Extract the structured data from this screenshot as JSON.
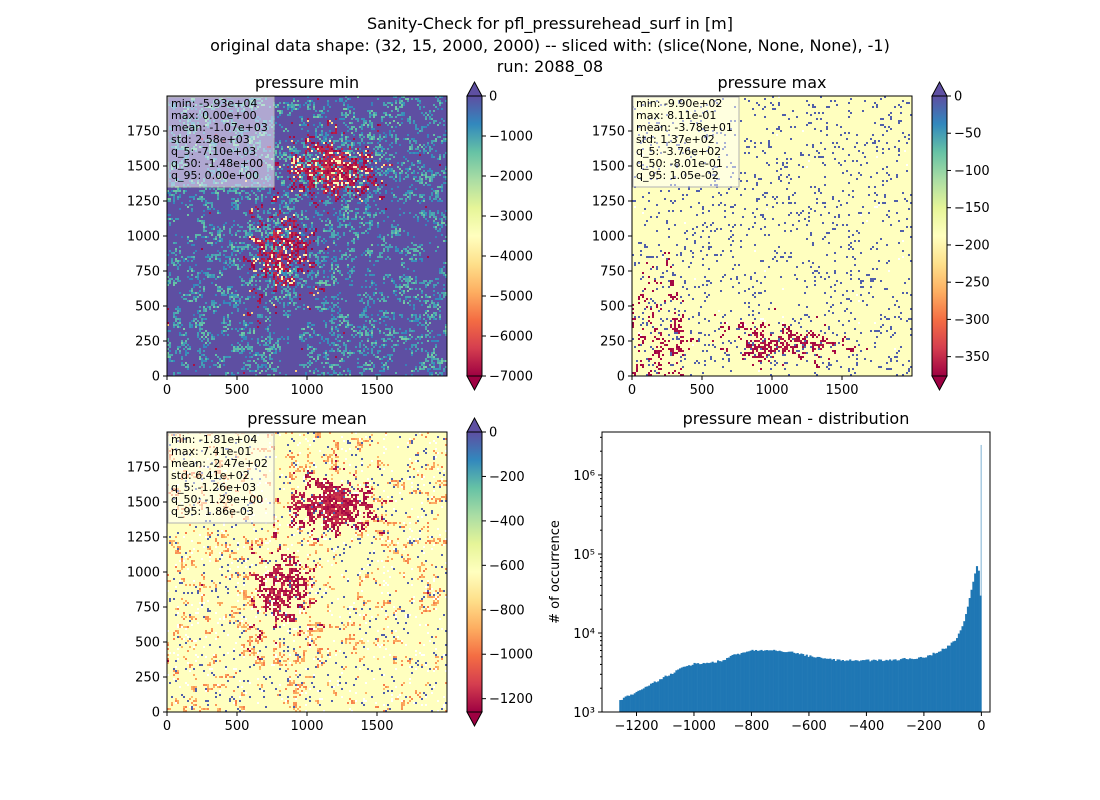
{
  "figure": {
    "title_lines": [
      "Sanity-Check for pfl_pressurehead_surf in [m]",
      "original data shape: (32, 15, 2000, 2000) -- sliced with: (slice(None, None, None), -1)",
      "run: 2088_08"
    ]
  },
  "colors": {
    "bg": "#ffffff",
    "hist_bar": "#1f77b4",
    "spectral_lo": "#9e0142",
    "spectral_hi": "#5e4fa2",
    "stats_box_bg": "#ffffff"
  },
  "chart_data": [
    {
      "type": "heatmap",
      "title": "pressure min",
      "colormap": "Spectral",
      "xlim": [
        0,
        2000
      ],
      "ylim": [
        0,
        2000
      ],
      "xticks": [
        "0",
        "500",
        "1000",
        "1500"
      ],
      "yticks": [
        "0",
        "250",
        "500",
        "750",
        "1000",
        "1250",
        "1500",
        "1750"
      ],
      "colorbar": {
        "min": -7000,
        "max": 0,
        "ticks": [
          "0",
          "−1000",
          "−2000",
          "−3000",
          "−4000",
          "−5000",
          "−6000",
          "−7000"
        ],
        "extend_top": true,
        "extend_bottom": true
      },
      "stats": [
        "min: -5.93e+04",
        "max: 0.00e+00",
        "mean: -1.07e+03",
        "std: 2.58e+03",
        "q_5: -7.10e+03",
        "q_50: -1.48e+00",
        "q_95: 0.00e+00"
      ],
      "dominant": "blue"
    },
    {
      "type": "heatmap",
      "title": "pressure max",
      "colormap": "Spectral",
      "xlim": [
        0,
        2000
      ],
      "ylim": [
        0,
        2000
      ],
      "xticks": [
        "0",
        "500",
        "1000",
        "1500"
      ],
      "yticks": [
        "0",
        "250",
        "500",
        "750",
        "1000",
        "1250",
        "1500",
        "1750"
      ],
      "colorbar": {
        "min": -376,
        "max": 0,
        "ticks": [
          "0",
          "−50",
          "−100",
          "−150",
          "−200",
          "−250",
          "−300",
          "−350"
        ],
        "extend_top": true,
        "extend_bottom": true
      },
      "stats": [
        "min: -9.90e+02",
        "max: 8.11e-01",
        "mean: -3.78e+01",
        "std: 1.37e+02",
        "q_5: -3.76e+02",
        "q_50: -8.01e-01",
        "q_95: 1.05e-02"
      ],
      "dominant": "yellow"
    },
    {
      "type": "heatmap",
      "title": "pressure mean",
      "colormap": "Spectral",
      "xlim": [
        0,
        2000
      ],
      "ylim": [
        0,
        2000
      ],
      "xticks": [
        "0",
        "500",
        "1000",
        "1500"
      ],
      "yticks": [
        "0",
        "250",
        "500",
        "750",
        "1000",
        "1250",
        "1500",
        "1750"
      ],
      "colorbar": {
        "min": -1260,
        "max": 0,
        "ticks": [
          "0",
          "−200",
          "−400",
          "−600",
          "−800",
          "−1000",
          "−1200"
        ],
        "extend_top": true,
        "extend_bottom": true
      },
      "stats": [
        "min: -1.81e+04",
        "max: 7.41e-01",
        "mean: -2.47e+02",
        "std: 6.41e+02",
        "q_5: -1.26e+03",
        "q_50: -1.29e+00",
        "q_95: 1.86e-03"
      ],
      "dominant": "yellow"
    },
    {
      "type": "bar",
      "title": "pressure mean - distribution",
      "ylabel": "# of occurrence",
      "xlabel": "",
      "xlim": [
        -1320,
        30
      ],
      "ylim": [
        1000,
        3500000
      ],
      "yscale": "log",
      "xticks": [
        "−1200",
        "−1000",
        "−800",
        "−600",
        "−400",
        "−200",
        "0"
      ],
      "yticks": [
        "10³",
        "10⁴",
        "10⁵",
        "10⁶"
      ],
      "profile": [
        [
          -1260,
          1400
        ],
        [
          -1200,
          1800
        ],
        [
          -1100,
          2800
        ],
        [
          -1040,
          3600
        ],
        [
          -1000,
          4100
        ],
        [
          -940,
          4200
        ],
        [
          -900,
          4500
        ],
        [
          -860,
          5300
        ],
        [
          -800,
          6000
        ],
        [
          -740,
          6100
        ],
        [
          -700,
          5900
        ],
        [
          -640,
          5600
        ],
        [
          -600,
          5100
        ],
        [
          -540,
          4700
        ],
        [
          -500,
          4500
        ],
        [
          -440,
          4500
        ],
        [
          -400,
          4500
        ],
        [
          -340,
          4500
        ],
        [
          -300,
          4600
        ],
        [
          -240,
          4800
        ],
        [
          -200,
          4900
        ],
        [
          -160,
          5600
        ],
        [
          -120,
          6600
        ],
        [
          -90,
          8200
        ],
        [
          -70,
          11000
        ],
        [
          -55,
          16000
        ],
        [
          -40,
          28000
        ],
        [
          -28,
          45000
        ],
        [
          -20,
          60000
        ],
        [
          -14,
          75000
        ],
        [
          -10,
          65000
        ],
        [
          -6,
          40000
        ],
        [
          -3,
          30000
        ],
        [
          -1,
          2400000
        ],
        [
          0,
          1500
        ]
      ]
    }
  ]
}
